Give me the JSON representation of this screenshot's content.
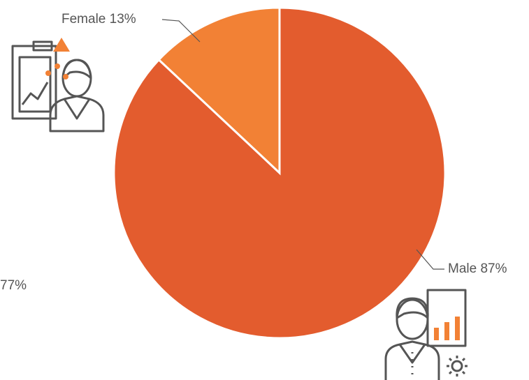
{
  "chart_data": {
    "type": "pie",
    "categories": [
      "Female",
      "Male"
    ],
    "values": [
      13,
      87
    ],
    "value_labels": [
      "13%",
      "87%"
    ],
    "colors": [
      "#f28135",
      "#e35c2e"
    ],
    "annotations": [
      "77%"
    ]
  }
}
